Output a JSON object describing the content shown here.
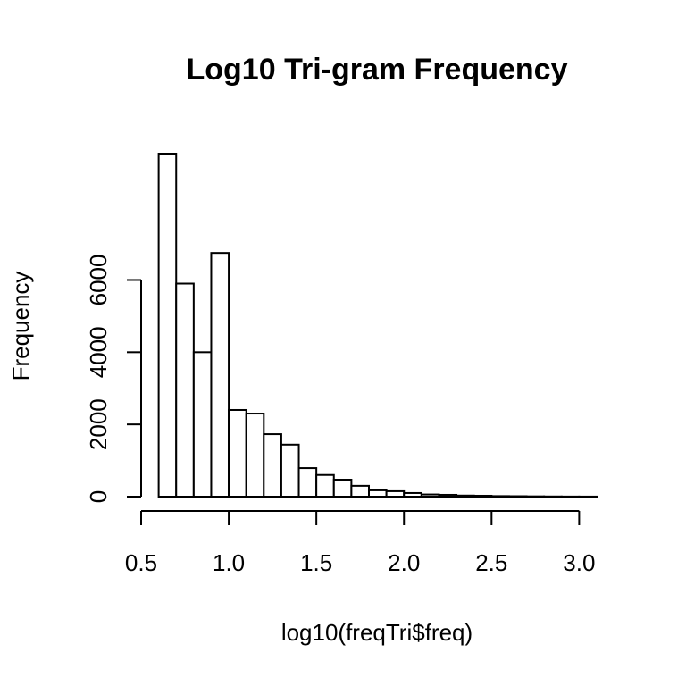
{
  "chart_data": {
    "type": "histogram",
    "title": "Log10 Tri-gram Frequency",
    "x_label": "log10(freqTri$freq)",
    "y_label": "Frequency",
    "bins": [
      0.6,
      0.7,
      0.8,
      0.9,
      1.0,
      1.1,
      1.2,
      1.3,
      1.4,
      1.5,
      1.6,
      1.7,
      1.8,
      1.9,
      2.0,
      2.1,
      2.2,
      2.3,
      2.4,
      2.5,
      2.6,
      2.7,
      2.8,
      2.9,
      3.0,
      3.1
    ],
    "values": [
      9500,
      5900,
      4000,
      6750,
      2400,
      2300,
      1730,
      1440,
      790,
      600,
      470,
      300,
      175,
      150,
      100,
      60,
      50,
      30,
      25,
      15,
      12,
      8,
      5,
      3,
      2
    ],
    "color": "#ffffff",
    "xlim": [
      0.5,
      3.1
    ],
    "ylim": [
      0,
      9500
    ],
    "xticks": [
      {
        "value": 0.5,
        "label": "0.5"
      },
      {
        "value": 1.0,
        "label": "1.0"
      },
      {
        "value": 1.5,
        "label": "1.5"
      },
      {
        "value": 2.0,
        "label": "2.0"
      },
      {
        "value": 2.5,
        "label": "2.5"
      },
      {
        "value": 3.0,
        "label": "3.0"
      }
    ],
    "yticks": [
      0,
      2000,
      4000,
      6000
    ]
  }
}
